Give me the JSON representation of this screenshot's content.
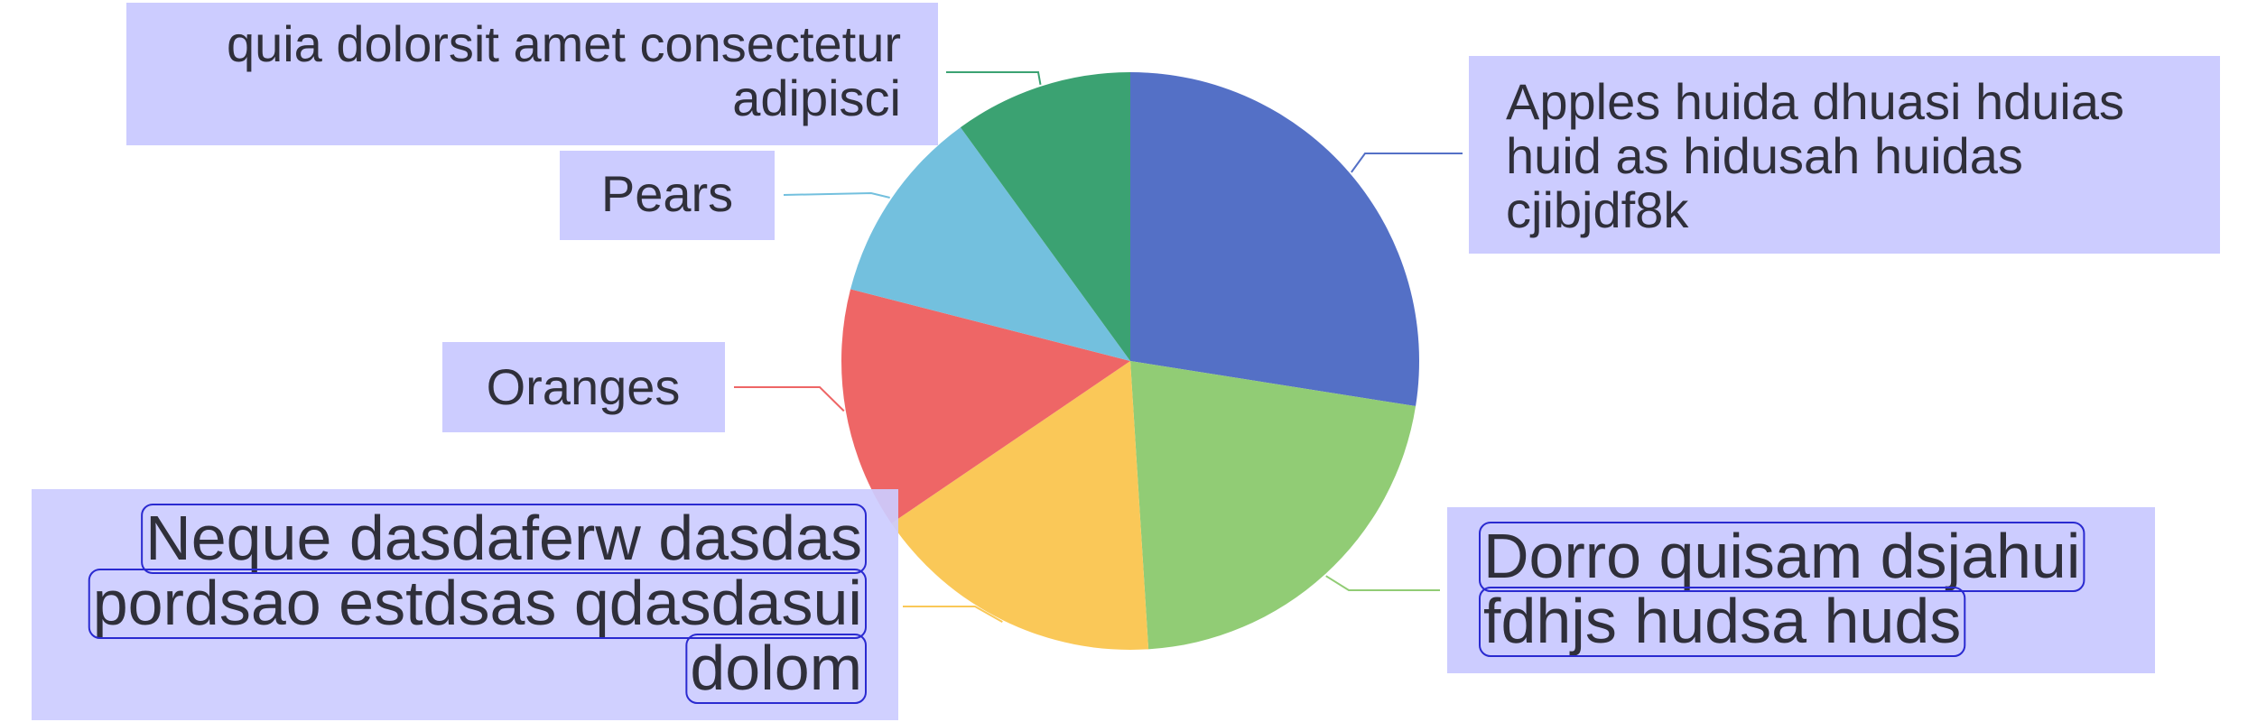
{
  "chart_data": {
    "type": "pie",
    "title": "",
    "legend": "none",
    "slices": [
      {
        "label": "Apples huida dhuasi hduias huid as hidusah huidas cjibjdf8k",
        "label_lines": [
          "Apples huida dhuasi hduias",
          "huid as hidusah huidas",
          "cjibjdf8k"
        ],
        "value": 27.5,
        "color": "#5470c6"
      },
      {
        "label": "Dorro quisam dsjahui fdhjs hudsa huds",
        "label_lines": [
          "Dorro quisam dsjahui",
          "fdhjs hudsa huds"
        ],
        "value": 21.5,
        "color": "#91cc75"
      },
      {
        "label": "Neque dasdaferw dasdas pordsao estdsas qdasdasui dolom",
        "label_lines": [
          "Neque dasdaferw dasdas",
          "pordsao estdsas qdasdasui",
          "dolom"
        ],
        "value": 16.5,
        "color": "#fac858"
      },
      {
        "label": "Oranges",
        "label_lines": [
          "Oranges"
        ],
        "value": 13.5,
        "color": "#ee6666"
      },
      {
        "label": "Pears",
        "label_lines": [
          "Pears"
        ],
        "value": 11.0,
        "color": "#73c0de"
      },
      {
        "label": "quia dolorsit amet consectetur adipisci",
        "label_lines": [
          "quia dolorsit amet consectetur",
          "adipisci"
        ],
        "value": 10.0,
        "color": "#3ba272"
      }
    ]
  },
  "style": {
    "label_box_color": "#ccccff",
    "label_text_color": "#2f2f3a",
    "rich_outline_color": "#2a2ad0"
  }
}
